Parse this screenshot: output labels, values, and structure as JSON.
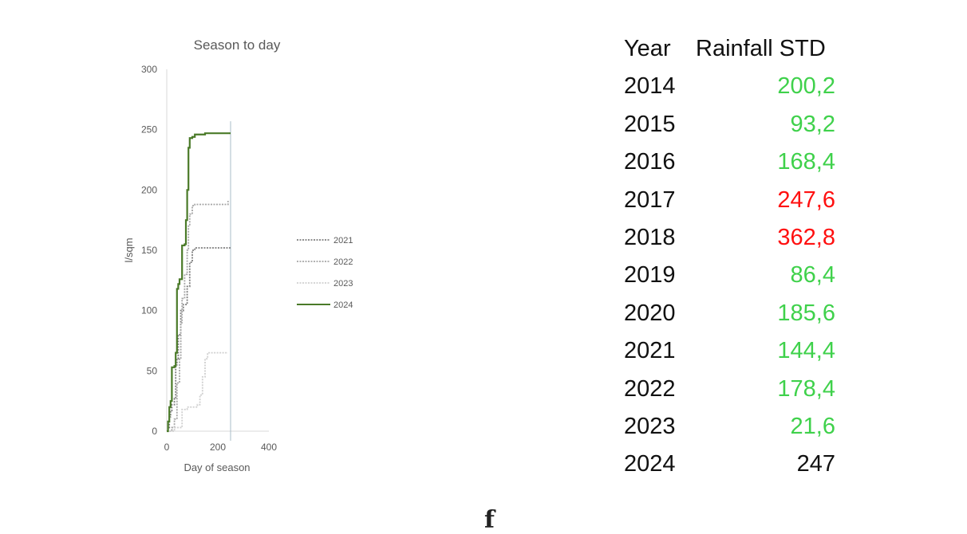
{
  "chart_data": {
    "type": "line",
    "title": "Season to day",
    "xlabel": "Day of season",
    "ylabel": "l/sqm",
    "xlim": [
      0,
      400
    ],
    "ylim": [
      0,
      300
    ],
    "xticks": [
      0,
      200,
      400
    ],
    "yticks": [
      0,
      50,
      100,
      150,
      200,
      250,
      300
    ],
    "reference_line_x": 250,
    "grid": false,
    "legend_position": "right",
    "series": [
      {
        "name": "2021",
        "style": "dotted",
        "color": "#7f7f7f",
        "points": [
          [
            0,
            0
          ],
          [
            5,
            3
          ],
          [
            10,
            12
          ],
          [
            15,
            17
          ],
          [
            20,
            22
          ],
          [
            30,
            27
          ],
          [
            35,
            55
          ],
          [
            40,
            60
          ],
          [
            45,
            80
          ],
          [
            55,
            100
          ],
          [
            65,
            105
          ],
          [
            75,
            105
          ],
          [
            80,
            120
          ],
          [
            90,
            140
          ],
          [
            100,
            150
          ],
          [
            110,
            152
          ],
          [
            250,
            152
          ]
        ]
      },
      {
        "name": "2022",
        "style": "dotted",
        "color": "#a6a6a6",
        "points": [
          [
            0,
            0
          ],
          [
            20,
            3
          ],
          [
            30,
            10
          ],
          [
            40,
            40
          ],
          [
            50,
            60
          ],
          [
            55,
            90
          ],
          [
            60,
            110
          ],
          [
            70,
            130
          ],
          [
            80,
            150
          ],
          [
            85,
            170
          ],
          [
            90,
            180
          ],
          [
            100,
            187
          ],
          [
            110,
            188
          ],
          [
            230,
            188
          ],
          [
            240,
            191
          ]
        ]
      },
      {
        "name": "2023",
        "style": "dotted",
        "color": "#d0d0d0",
        "points": [
          [
            0,
            0
          ],
          [
            30,
            3
          ],
          [
            60,
            18
          ],
          [
            80,
            20
          ],
          [
            120,
            22
          ],
          [
            130,
            30
          ],
          [
            140,
            45
          ],
          [
            150,
            60
          ],
          [
            160,
            65
          ],
          [
            240,
            65
          ]
        ]
      },
      {
        "name": "2024",
        "style": "solid",
        "color": "#4a7a28",
        "points": [
          [
            0,
            0
          ],
          [
            5,
            8
          ],
          [
            10,
            20
          ],
          [
            15,
            25
          ],
          [
            20,
            53
          ],
          [
            30,
            54
          ],
          [
            35,
            65
          ],
          [
            40,
            118
          ],
          [
            45,
            122
          ],
          [
            50,
            126
          ],
          [
            60,
            154
          ],
          [
            70,
            155
          ],
          [
            75,
            175
          ],
          [
            80,
            200
          ],
          [
            85,
            235
          ],
          [
            90,
            243
          ],
          [
            100,
            244
          ],
          [
            110,
            246
          ],
          [
            150,
            247
          ],
          [
            250,
            247
          ]
        ]
      }
    ]
  },
  "table": {
    "headers": [
      "Year",
      "Rainfall STD"
    ],
    "rows": [
      {
        "year": "2014",
        "value": "200,2",
        "color": "#3fd14b"
      },
      {
        "year": "2015",
        "value": "93,2",
        "color": "#3fd14b"
      },
      {
        "year": "2016",
        "value": "168,4",
        "color": "#3fd14b"
      },
      {
        "year": "2017",
        "value": "247,6",
        "color": "#ff1010"
      },
      {
        "year": "2018",
        "value": "362,8",
        "color": "#ff1010"
      },
      {
        "year": "2019",
        "value": "86,4",
        "color": "#3fd14b"
      },
      {
        "year": "2020",
        "value": "185,6",
        "color": "#3fd14b"
      },
      {
        "year": "2021",
        "value": "144,4",
        "color": "#3fd14b"
      },
      {
        "year": "2022",
        "value": "178,4",
        "color": "#3fd14b"
      },
      {
        "year": "2023",
        "value": "21,6",
        "color": "#3fd14b"
      },
      {
        "year": "2024",
        "value": "247",
        "color": "#111111"
      }
    ]
  },
  "footer": {
    "glyph": "f"
  }
}
